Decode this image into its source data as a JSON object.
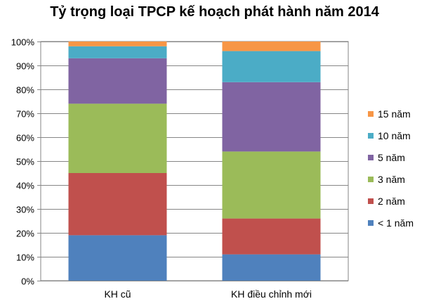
{
  "chart_data": {
    "type": "bar",
    "stacked": true,
    "percent": true,
    "title": "Tỷ trọng loại TPCP kế hoạch phát hành năm 2014",
    "categories": [
      "KH cũ",
      "KH  điều chỉnh mới"
    ],
    "series": [
      {
        "name": "< 1 năm",
        "color": "#4F81BD",
        "values": [
          19,
          11
        ]
      },
      {
        "name": "2 năm",
        "color": "#C0504D",
        "values": [
          26,
          15
        ]
      },
      {
        "name": "3 năm",
        "color": "#9BBB59",
        "values": [
          29,
          28
        ]
      },
      {
        "name": "5 năm",
        "color": "#8064A2",
        "values": [
          19,
          29
        ]
      },
      {
        "name": "10 năm",
        "color": "#4BACC6",
        "values": [
          5,
          13
        ]
      },
      {
        "name": "15 năm",
        "color": "#F79646",
        "values": [
          2,
          4
        ]
      }
    ],
    "ylim": [
      0,
      100
    ],
    "yticks": [
      "0%",
      "10%",
      "20%",
      "30%",
      "40%",
      "50%",
      "60%",
      "70%",
      "80%",
      "90%",
      "100%"
    ],
    "grid": true,
    "legend": "right"
  }
}
